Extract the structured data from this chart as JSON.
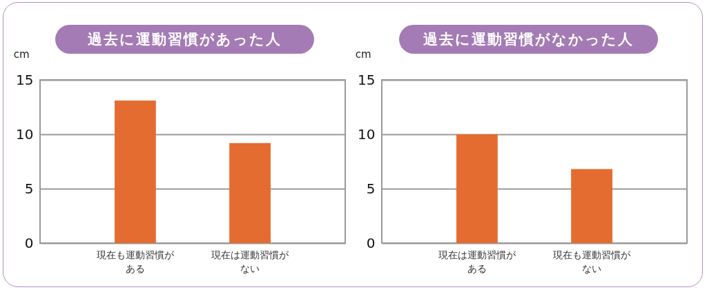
{
  "chart_data": [
    {
      "type": "bar",
      "title": "過去に運動習慣があった人",
      "ylabel": "cm",
      "categories": [
        "現在も運動習慣がある",
        "現在は運動習慣がない"
      ],
      "values": [
        13.1,
        9.2
      ],
      "color": "#e46c31",
      "ylim": [
        0,
        15
      ],
      "yticks": [
        0,
        5,
        10,
        15
      ],
      "grid": "y"
    },
    {
      "type": "bar",
      "title": "過去に運動習慣がなかった人",
      "ylabel": "cm",
      "categories": [
        "現在は運動習慣がある",
        "現在も運動習慣がない"
      ],
      "values": [
        10.0,
        6.8
      ],
      "color": "#e46c31",
      "ylim": [
        0,
        15
      ],
      "yticks": [
        0,
        5,
        10,
        15
      ],
      "grid": "y"
    }
  ]
}
